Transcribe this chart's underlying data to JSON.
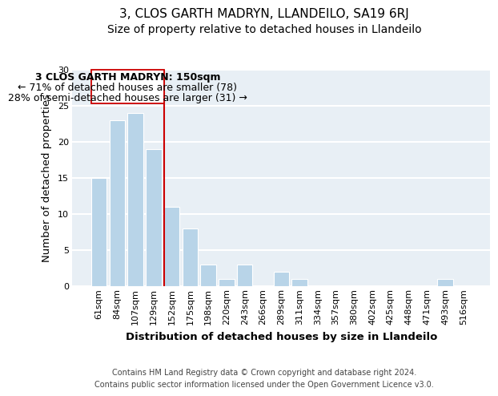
{
  "title": "3, CLOS GARTH MADRYN, LLANDEILO, SA19 6RJ",
  "subtitle": "Size of property relative to detached houses in Llandeilo",
  "xlabel": "Distribution of detached houses by size in Llandeilo",
  "ylabel": "Number of detached properties",
  "footer_line1": "Contains HM Land Registry data © Crown copyright and database right 2024.",
  "footer_line2": "Contains public sector information licensed under the Open Government Licence v3.0.",
  "bar_labels": [
    "61sqm",
    "84sqm",
    "107sqm",
    "129sqm",
    "152sqm",
    "175sqm",
    "198sqm",
    "220sqm",
    "243sqm",
    "266sqm",
    "289sqm",
    "311sqm",
    "334sqm",
    "357sqm",
    "380sqm",
    "402sqm",
    "425sqm",
    "448sqm",
    "471sqm",
    "493sqm",
    "516sqm"
  ],
  "bar_heights": [
    15,
    23,
    24,
    19,
    11,
    8,
    3,
    1,
    3,
    0,
    2,
    1,
    0,
    0,
    0,
    0,
    0,
    0,
    0,
    1,
    0
  ],
  "bar_color": "#b8d4e8",
  "bar_edge_color": "#ffffff",
  "background_color": "#ffffff",
  "plot_bg_color": "#e8eff5",
  "grid_color": "#ffffff",
  "red_line_index": 4,
  "annotation_title": "3 CLOS GARTH MADRYN: 150sqm",
  "annotation_line1": "← 71% of detached houses are smaller (78)",
  "annotation_line2": "28% of semi-detached houses are larger (31) →",
  "annotation_box_color": "#ffffff",
  "annotation_border_color": "#cc0000",
  "red_line_color": "#cc0000",
  "ylim": [
    0,
    30
  ],
  "yticks": [
    0,
    5,
    10,
    15,
    20,
    25,
    30
  ],
  "title_fontsize": 11,
  "subtitle_fontsize": 10,
  "axis_label_fontsize": 9.5,
  "tick_fontsize": 8,
  "annotation_fontsize": 9,
  "footer_fontsize": 7
}
